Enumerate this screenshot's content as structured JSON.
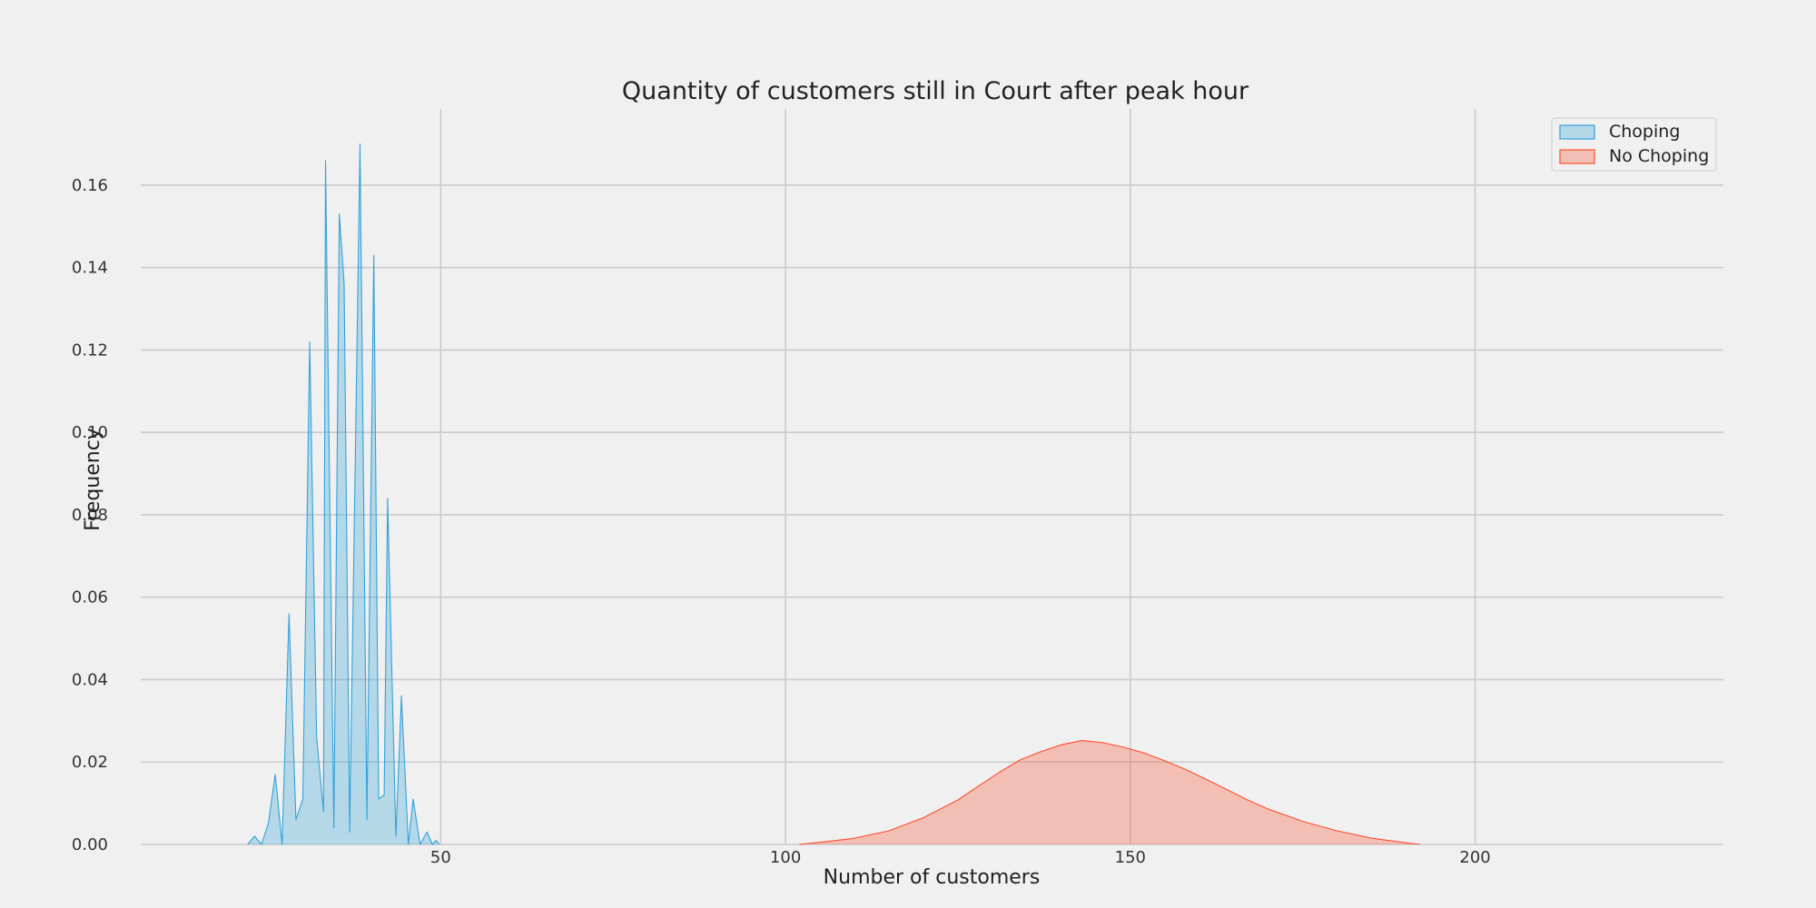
{
  "chart_data": {
    "type": "area",
    "title": "Quantity of customers still in Court after peak hour",
    "xlabel": "Number of customers",
    "ylabel": "Frequency",
    "xlim": [
      6.5,
      236
    ],
    "ylim": [
      0,
      0.1785
    ],
    "xticks": [
      50,
      100,
      150,
      200
    ],
    "yticks": [
      0.0,
      0.02,
      0.04,
      0.06,
      0.08,
      0.1,
      0.12,
      0.14,
      0.16
    ],
    "x_tick_labels": [
      "50",
      "100",
      "150",
      "200"
    ],
    "y_tick_labels": [
      "0.00",
      "0.02",
      "0.04",
      "0.06",
      "0.08",
      "0.10",
      "0.12",
      "0.14",
      "0.16"
    ],
    "grid": true,
    "legend_position": "top-right",
    "series": [
      {
        "name": "Choping",
        "color": "#30a2da",
        "points": [
          [
            22.0,
            0.0
          ],
          [
            23.0,
            0.002
          ],
          [
            24.0,
            0.0
          ],
          [
            25.0,
            0.005
          ],
          [
            26.0,
            0.017
          ],
          [
            27.0,
            0.0
          ],
          [
            28.0,
            0.056
          ],
          [
            29.0,
            0.006
          ],
          [
            30.0,
            0.011
          ],
          [
            31.0,
            0.122
          ],
          [
            32.0,
            0.026
          ],
          [
            33.0,
            0.008
          ],
          [
            33.3,
            0.166
          ],
          [
            34.5,
            0.004
          ],
          [
            35.3,
            0.153
          ],
          [
            36.0,
            0.136
          ],
          [
            36.8,
            0.003
          ],
          [
            38.3,
            0.17
          ],
          [
            39.3,
            0.006
          ],
          [
            40.3,
            0.143
          ],
          [
            41.0,
            0.011
          ],
          [
            41.8,
            0.012
          ],
          [
            42.3,
            0.084
          ],
          [
            43.5,
            0.002
          ],
          [
            44.3,
            0.036
          ],
          [
            45.3,
            0.0
          ],
          [
            46.0,
            0.011
          ],
          [
            47.0,
            0.0
          ],
          [
            48.0,
            0.003
          ],
          [
            48.8,
            0.0
          ],
          [
            49.3,
            0.001
          ],
          [
            49.8,
            0.0
          ]
        ]
      },
      {
        "name": "No Choping",
        "color": "#fc4f30",
        "points": [
          [
            102,
            0.0
          ],
          [
            106,
            0.0007
          ],
          [
            110,
            0.0015
          ],
          [
            115,
            0.0033
          ],
          [
            120,
            0.0065
          ],
          [
            125,
            0.0108
          ],
          [
            128,
            0.0142
          ],
          [
            131,
            0.0175
          ],
          [
            134,
            0.0205
          ],
          [
            137,
            0.0225
          ],
          [
            140,
            0.0242
          ],
          [
            143,
            0.0252
          ],
          [
            146,
            0.0247
          ],
          [
            149,
            0.0236
          ],
          [
            152,
            0.0222
          ],
          [
            155,
            0.0203
          ],
          [
            158,
            0.0182
          ],
          [
            161,
            0.0158
          ],
          [
            164,
            0.0133
          ],
          [
            167,
            0.0108
          ],
          [
            170,
            0.0086
          ],
          [
            175,
            0.0056
          ],
          [
            180,
            0.0033
          ],
          [
            185,
            0.0015
          ],
          [
            190,
            0.0004
          ],
          [
            192,
            0.0
          ]
        ]
      }
    ]
  }
}
